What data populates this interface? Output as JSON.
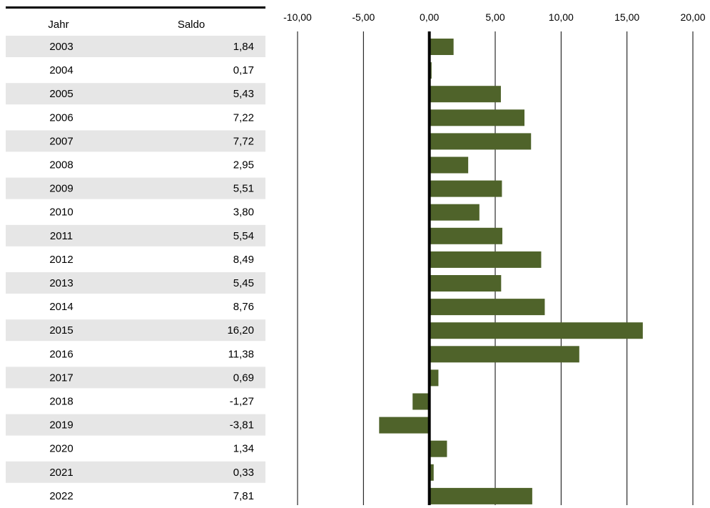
{
  "chart_data": {
    "type": "bar",
    "orientation": "horizontal",
    "title": "",
    "table_headers": {
      "year": "Jahr",
      "value": "Saldo"
    },
    "categories": [
      "2003",
      "2004",
      "2005",
      "2006",
      "2007",
      "2008",
      "2009",
      "2010",
      "2011",
      "2012",
      "2013",
      "2014",
      "2015",
      "2016",
      "2017",
      "2018",
      "2019",
      "2020",
      "2021",
      "2022"
    ],
    "values": [
      1.84,
      0.17,
      5.43,
      7.22,
      7.72,
      2.95,
      5.51,
      3.8,
      5.54,
      8.49,
      5.45,
      8.76,
      16.2,
      11.38,
      0.69,
      -1.27,
      -3.81,
      1.34,
      0.33,
      7.81
    ],
    "value_labels": [
      "1,84",
      "0,17",
      "5,43",
      "7,22",
      "7,72",
      "2,95",
      "5,51",
      "3,80",
      "5,54",
      "8,49",
      "5,45",
      "8,76",
      "16,20",
      "11,38",
      "0,69",
      "-1,27",
      "-3,81",
      "1,34",
      "0,33",
      "7,81"
    ],
    "xlim": [
      -10,
      20
    ],
    "ticks": [
      -10,
      -5,
      0,
      5,
      10,
      15,
      20
    ],
    "tick_labels": [
      "-10,00",
      "-5,00",
      "0,00",
      "5,00",
      "10,00",
      "15,00",
      "20,00"
    ],
    "grid": true,
    "legend": "none",
    "colors": {
      "bar": "#4f632a",
      "row_stripe": "#e6e6e6",
      "grid": "#000000",
      "zero_line": "#000000"
    }
  }
}
